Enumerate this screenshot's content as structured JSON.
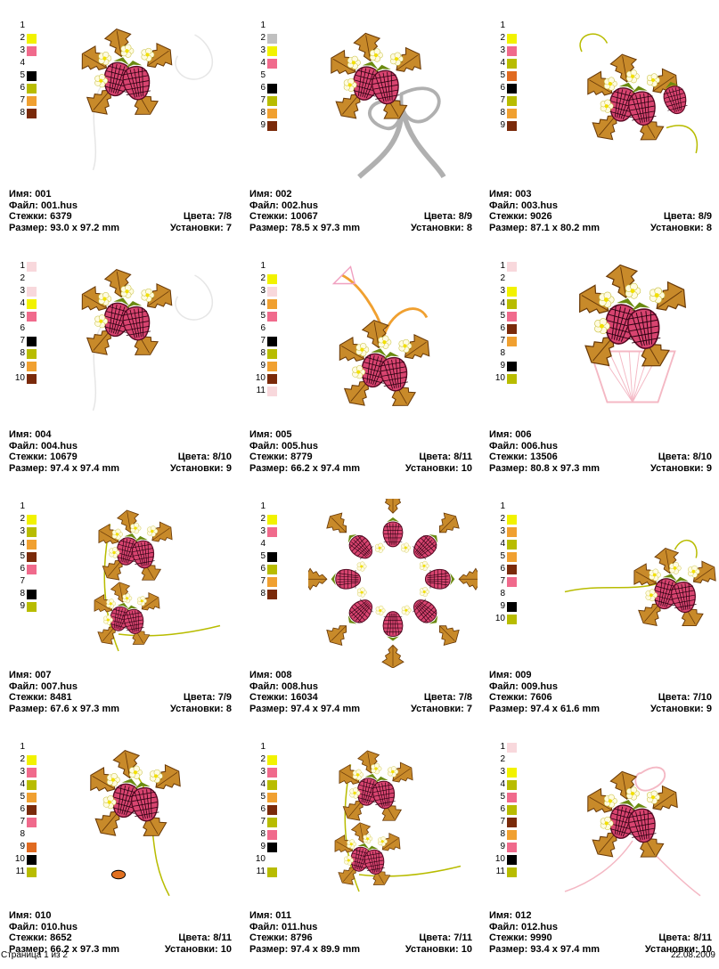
{
  "labels": {
    "name": "Имя:",
    "file": "Файл:",
    "stitches": "Стежки:",
    "size": "Размер:",
    "colors": "Цвета:",
    "stops": "Установки:"
  },
  "footer": {
    "page": "Страница 1 из 2",
    "date": "22.08.2009"
  },
  "designs": [
    {
      "name": "001",
      "file": "001.hus",
      "stitches": "6379",
      "size": "93.0 x 97.2 mm",
      "colors": "7/8",
      "stops": "7",
      "art": "corner",
      "palette": [
        {
          "n": "1",
          "c": "#ffffff"
        },
        {
          "n": "2",
          "c": "#f2f200"
        },
        {
          "n": "3",
          "c": "#f06a8c"
        },
        {
          "n": "4",
          "c": "#ffffff"
        },
        {
          "n": "5",
          "c": "#000000"
        },
        {
          "n": "6",
          "c": "#b8bc00"
        },
        {
          "n": "7",
          "c": "#f0a030"
        },
        {
          "n": "8",
          "c": "#7a2a0a"
        }
      ]
    },
    {
      "name": "002",
      "file": "002.hus",
      "stitches": "10067",
      "size": "78.5 x 97.3 mm",
      "colors": "8/9",
      "stops": "8",
      "art": "bow",
      "palette": [
        {
          "n": "1",
          "c": "#ffffff"
        },
        {
          "n": "2",
          "c": "#c0c0c0"
        },
        {
          "n": "3",
          "c": "#f2f200"
        },
        {
          "n": "4",
          "c": "#f06a8c"
        },
        {
          "n": "5",
          "c": "#ffffff"
        },
        {
          "n": "6",
          "c": "#000000"
        },
        {
          "n": "7",
          "c": "#b8bc00"
        },
        {
          "n": "8",
          "c": "#f0a030"
        },
        {
          "n": "9",
          "c": "#7a2a0a"
        }
      ]
    },
    {
      "name": "003",
      "file": "003.hus",
      "stitches": "9026",
      "size": "87.1 x 80.2 mm",
      "colors": "8/9",
      "stops": "8",
      "art": "branch",
      "palette": [
        {
          "n": "1",
          "c": "#ffffff"
        },
        {
          "n": "2",
          "c": "#f2f200"
        },
        {
          "n": "3",
          "c": "#f06a8c"
        },
        {
          "n": "4",
          "c": "#b8bc00"
        },
        {
          "n": "5",
          "c": "#e06a20"
        },
        {
          "n": "6",
          "c": "#000000"
        },
        {
          "n": "7",
          "c": "#b8bc00"
        },
        {
          "n": "8",
          "c": "#f0a030"
        },
        {
          "n": "9",
          "c": "#7a2a0a"
        }
      ]
    },
    {
      "name": "004",
      "file": "004.hus",
      "stitches": "10679",
      "size": "97.4 x 97.4 mm",
      "colors": "8/10",
      "stops": "9",
      "art": "corner",
      "palette": [
        {
          "n": "1",
          "c": "#f8d8dc"
        },
        {
          "n": "2",
          "c": "#ffffff"
        },
        {
          "n": "3",
          "c": "#f8d8dc"
        },
        {
          "n": "4",
          "c": "#f2f200"
        },
        {
          "n": "5",
          "c": "#f06a8c"
        },
        {
          "n": "6",
          "c": "#ffffff"
        },
        {
          "n": "7",
          "c": "#000000"
        },
        {
          "n": "8",
          "c": "#b8bc00"
        },
        {
          "n": "9",
          "c": "#f0a030"
        },
        {
          "n": "10",
          "c": "#7a2a0a"
        }
      ]
    },
    {
      "name": "005",
      "file": "005.hus",
      "stitches": "8779",
      "size": "66.2 x 97.4 mm",
      "colors": "8/11",
      "stops": "10",
      "art": "hanging",
      "palette": [
        {
          "n": "1",
          "c": "#ffffff"
        },
        {
          "n": "2",
          "c": "#f2f200"
        },
        {
          "n": "3",
          "c": "#f8d8dc"
        },
        {
          "n": "4",
          "c": "#f0a030"
        },
        {
          "n": "5",
          "c": "#f06a8c"
        },
        {
          "n": "6",
          "c": "#ffffff"
        },
        {
          "n": "7",
          "c": "#000000"
        },
        {
          "n": "8",
          "c": "#b8bc00"
        },
        {
          "n": "9",
          "c": "#f0a030"
        },
        {
          "n": "10",
          "c": "#7a2a0a"
        },
        {
          "n": "11",
          "c": "#f8d8dc"
        }
      ]
    },
    {
      "name": "006",
      "file": "006.hus",
      "stitches": "13506",
      "size": "80.8 x 97.3 mm",
      "colors": "8/10",
      "stops": "9",
      "art": "basket",
      "palette": [
        {
          "n": "1",
          "c": "#f8d8dc"
        },
        {
          "n": "2",
          "c": "#ffffff"
        },
        {
          "n": "3",
          "c": "#f2f200"
        },
        {
          "n": "4",
          "c": "#b8bc00"
        },
        {
          "n": "5",
          "c": "#f06a8c"
        },
        {
          "n": "6",
          "c": "#7a2a0a"
        },
        {
          "n": "7",
          "c": "#f0a030"
        },
        {
          "n": "8",
          "c": "#ffffff"
        },
        {
          "n": "9",
          "c": "#000000"
        },
        {
          "n": "10",
          "c": "#b8bc00"
        }
      ]
    },
    {
      "name": "007",
      "file": "007.hus",
      "stitches": "8481",
      "size": "67.6 x 97.3 mm",
      "colors": "7/9",
      "stops": "8",
      "art": "lcorner",
      "palette": [
        {
          "n": "1",
          "c": "#ffffff"
        },
        {
          "n": "2",
          "c": "#f2f200"
        },
        {
          "n": "3",
          "c": "#b8bc00"
        },
        {
          "n": "4",
          "c": "#f0a030"
        },
        {
          "n": "5",
          "c": "#7a2a0a"
        },
        {
          "n": "6",
          "c": "#f06a8c"
        },
        {
          "n": "7",
          "c": "#ffffff"
        },
        {
          "n": "8",
          "c": "#000000"
        },
        {
          "n": "9",
          "c": "#b8bc00"
        }
      ]
    },
    {
      "name": "008",
      "file": "008.hus",
      "stitches": "16034",
      "size": "97.4 x 97.4 mm",
      "colors": "7/8",
      "stops": "7",
      "art": "wreath",
      "palette": [
        {
          "n": "1",
          "c": "#ffffff"
        },
        {
          "n": "2",
          "c": "#f2f200"
        },
        {
          "n": "3",
          "c": "#f06a8c"
        },
        {
          "n": "4",
          "c": "#ffffff"
        },
        {
          "n": "5",
          "c": "#000000"
        },
        {
          "n": "6",
          "c": "#b8bc00"
        },
        {
          "n": "7",
          "c": "#f0a030"
        },
        {
          "n": "8",
          "c": "#7a2a0a"
        }
      ]
    },
    {
      "name": "009",
      "file": "009.hus",
      "stitches": "7606",
      "size": "97.4 x 61.6 mm",
      "colors": "7/10",
      "stops": "9",
      "art": "horizontal",
      "palette": [
        {
          "n": "1",
          "c": "#ffffff"
        },
        {
          "n": "2",
          "c": "#f2f200"
        },
        {
          "n": "3",
          "c": "#f0a030"
        },
        {
          "n": "4",
          "c": "#b8bc00"
        },
        {
          "n": "5",
          "c": "#f0a030"
        },
        {
          "n": "6",
          "c": "#7a2a0a"
        },
        {
          "n": "7",
          "c": "#f06a8c"
        },
        {
          "n": "8",
          "c": "#ffffff"
        },
        {
          "n": "9",
          "c": "#000000"
        },
        {
          "n": "10",
          "c": "#b8bc00"
        }
      ]
    },
    {
      "name": "010",
      "file": "010.hus",
      "stitches": "8652",
      "size": "66.2 x 97.3 mm",
      "colors": "8/11",
      "stops": "10",
      "art": "vine",
      "palette": [
        {
          "n": "1",
          "c": "#ffffff"
        },
        {
          "n": "2",
          "c": "#f2f200"
        },
        {
          "n": "3",
          "c": "#f06a8c"
        },
        {
          "n": "4",
          "c": "#b8bc00"
        },
        {
          "n": "5",
          "c": "#f0a030"
        },
        {
          "n": "6",
          "c": "#7a2a0a"
        },
        {
          "n": "7",
          "c": "#f06a8c"
        },
        {
          "n": "8",
          "c": "#ffffff"
        },
        {
          "n": "9",
          "c": "#e06a20"
        },
        {
          "n": "10",
          "c": "#000000"
        },
        {
          "n": "11",
          "c": "#b8bc00"
        }
      ]
    },
    {
      "name": "011",
      "file": "011.hus",
      "stitches": "8796",
      "size": "97.4 x 89.9 mm",
      "colors": "7/11",
      "stops": "10",
      "art": "lcorner2",
      "palette": [
        {
          "n": "1",
          "c": "#ffffff"
        },
        {
          "n": "2",
          "c": "#f2f200"
        },
        {
          "n": "3",
          "c": "#f06a8c"
        },
        {
          "n": "4",
          "c": "#b8bc00"
        },
        {
          "n": "5",
          "c": "#f0a030"
        },
        {
          "n": "6",
          "c": "#7a2a0a"
        },
        {
          "n": "7",
          "c": "#b8bc00"
        },
        {
          "n": "8",
          "c": "#f06a8c"
        },
        {
          "n": "9",
          "c": "#000000"
        },
        {
          "n": "10",
          "c": "#ffffff"
        },
        {
          "n": "11",
          "c": "#b8bc00"
        }
      ]
    },
    {
      "name": "012",
      "file": "012.hus",
      "stitches": "9990",
      "size": "93.4 x 97.4 mm",
      "colors": "8/11",
      "stops": "10",
      "art": "ribbon",
      "palette": [
        {
          "n": "1",
          "c": "#f8d8dc"
        },
        {
          "n": "2",
          "c": "#ffffff"
        },
        {
          "n": "3",
          "c": "#f2f200"
        },
        {
          "n": "4",
          "c": "#b8bc00"
        },
        {
          "n": "5",
          "c": "#f06a8c"
        },
        {
          "n": "6",
          "c": "#b8bc00"
        },
        {
          "n": "7",
          "c": "#7a2a0a"
        },
        {
          "n": "8",
          "c": "#f0a030"
        },
        {
          "n": "9",
          "c": "#f06a8c"
        },
        {
          "n": "10",
          "c": "#000000"
        },
        {
          "n": "11",
          "c": "#b8bc00"
        }
      ]
    }
  ]
}
